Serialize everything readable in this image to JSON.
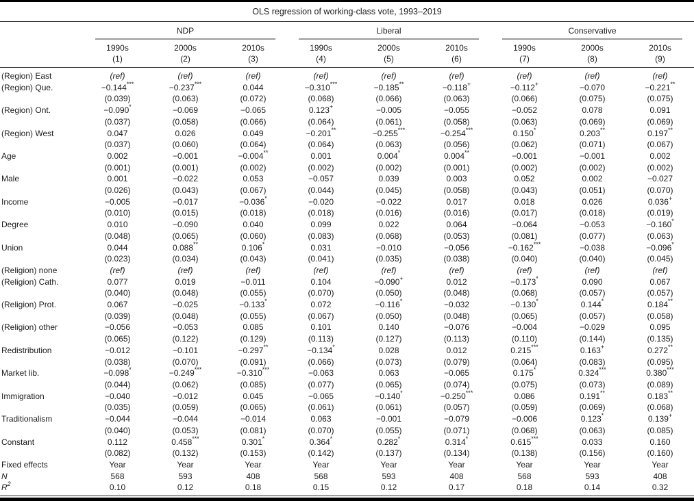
{
  "page": {
    "title": "OLS regression of working-class vote, 1993–2019"
  },
  "table": {
    "groups": [
      "NDP",
      "Liberal",
      "Conservative"
    ],
    "decades": [
      "1990s",
      "2000s",
      "2010s",
      "1990s",
      "2000s",
      "2010s",
      "1990s",
      "2000s",
      "2010s"
    ],
    "model_numbers": [
      "(1)",
      "(2)",
      "(3)",
      "(4)",
      "(5)",
      "(6)",
      "(7)",
      "(8)",
      "(9)"
    ],
    "rows": [
      {
        "label": "(Region) East",
        "values": [
          "(ref)",
          "(ref)",
          "(ref)",
          "(ref)",
          "(ref)",
          "(ref)",
          "(ref)",
          "(ref)",
          "(ref)"
        ]
      },
      {
        "label": "(Region) Que.",
        "values": [
          "−0.144***",
          "−0.237***",
          "0.044",
          "−0.310***",
          "−0.185**",
          "−0.118+",
          "−0.112+",
          "−0.070",
          "−0.221**"
        ],
        "se": [
          "(0.039)",
          "(0.063)",
          "(0.072)",
          "(0.068)",
          "(0.066)",
          "(0.063)",
          "(0.066)",
          "(0.075)",
          "(0.075)"
        ]
      },
      {
        "label": "(Region) Ont.",
        "values": [
          "−0.090*",
          "−0.069",
          "−0.065",
          "0.123+",
          "−0.005",
          "−0.055",
          "−0.052",
          "0.078",
          "0.091"
        ],
        "se": [
          "(0.037)",
          "(0.058)",
          "(0.066)",
          "(0.064)",
          "(0.061)",
          "(0.058)",
          "(0.063)",
          "(0.069)",
          "(0.069)"
        ]
      },
      {
        "label": "(Region) West",
        "values": [
          "0.047",
          "0.026",
          "0.049",
          "−0.201**",
          "−0.255***",
          "−0.254***",
          "0.150*",
          "0.203**",
          "0.197**"
        ],
        "se": [
          "(0.037)",
          "(0.060)",
          "(0.064)",
          "(0.064)",
          "(0.063)",
          "(0.056)",
          "(0.062)",
          "(0.071)",
          "(0.067)"
        ]
      },
      {
        "label": "Age",
        "values": [
          "0.002",
          "−0.001",
          "−0.004**",
          "0.001",
          "0.004*",
          "0.004**",
          "−0.001",
          "−0.001",
          "0.002"
        ],
        "se": [
          "(0.001)",
          "(0.001)",
          "(0.002)",
          "(0.002)",
          "(0.002)",
          "(0.001)",
          "(0.002)",
          "(0.002)",
          "(0.002)"
        ]
      },
      {
        "label": "Male",
        "values": [
          "0.001",
          "−0.022",
          "0.053",
          "−0.057",
          "0.039",
          "0.003",
          "0.052",
          "0.002",
          "−0.027"
        ],
        "se": [
          "(0.026)",
          "(0.043)",
          "(0.067)",
          "(0.044)",
          "(0.045)",
          "(0.058)",
          "(0.043)",
          "(0.051)",
          "(0.070)"
        ]
      },
      {
        "label": "Income",
        "values": [
          "−0.005",
          "−0.017",
          "−0.036*",
          "−0.020",
          "−0.022",
          "0.017",
          "0.018",
          "0.026",
          "0.036+"
        ],
        "se": [
          "(0.010)",
          "(0.015)",
          "(0.018)",
          "(0.018)",
          "(0.016)",
          "(0.016)",
          "(0.017)",
          "(0.018)",
          "(0.019)"
        ]
      },
      {
        "label": "Degree",
        "values": [
          "0.010",
          "−0.090",
          "0.040",
          "0.099",
          "0.022",
          "0.064",
          "−0.064",
          "−0.053",
          "−0.160*"
        ],
        "se": [
          "(0.048)",
          "(0.065)",
          "(0.060)",
          "(0.083)",
          "(0.068)",
          "(0.053)",
          "(0.081)",
          "(0.077)",
          "(0.063)"
        ]
      },
      {
        "label": "Union",
        "values": [
          "0.044",
          "0.088**",
          "0.106*",
          "0.031",
          "−0.010",
          "−0.056",
          "−0.162***",
          "−0.038",
          "−0.096*"
        ],
        "se": [
          "(0.023)",
          "(0.034)",
          "(0.043)",
          "(0.041)",
          "(0.035)",
          "(0.038)",
          "(0.040)",
          "(0.040)",
          "(0.045)"
        ]
      },
      {
        "label": "(Religion) none",
        "values": [
          "(ref)",
          "(ref)",
          "(ref)",
          "(ref)",
          "(ref)",
          "(ref)",
          "(ref)",
          "(ref)",
          "(ref)"
        ]
      },
      {
        "label": "(Religion) Cath.",
        "values": [
          "0.077",
          "0.019",
          "−0.011",
          "0.104",
          "−0.090+",
          "0.012",
          "−0.173*",
          "0.090",
          "0.067"
        ],
        "se": [
          "(0.040)",
          "(0.048)",
          "(0.055)",
          "(0.070)",
          "(0.050)",
          "(0.048)",
          "(0.068)",
          "(0.057)",
          "(0.057)"
        ]
      },
      {
        "label": "(Religion) Prot.",
        "values": [
          "0.067",
          "−0.025",
          "−0.133*",
          "0.072",
          "−0.116*",
          "−0.032",
          "−0.130*",
          "0.144*",
          "0.184**"
        ],
        "se": [
          "(0.039)",
          "(0.048)",
          "(0.055)",
          "(0.067)",
          "(0.050)",
          "(0.048)",
          "(0.065)",
          "(0.057)",
          "(0.058)"
        ]
      },
      {
        "label": "(Religion) other",
        "values": [
          "−0.056",
          "−0.053",
          "0.085",
          "0.101",
          "0.140",
          "−0.076",
          "−0.004",
          "−0.029",
          "0.095"
        ],
        "se": [
          "(0.065)",
          "(0.122)",
          "(0.129)",
          "(0.113)",
          "(0.127)",
          "(0.113)",
          "(0.110)",
          "(0.144)",
          "(0.135)"
        ]
      },
      {
        "label": "Redistribution",
        "values": [
          "−0.012",
          "−0.101",
          "−0.297**",
          "−0.134*",
          "0.028",
          "0.012",
          "0.215***",
          "0.163+",
          "0.272**"
        ],
        "se": [
          "(0.038)",
          "(0.070)",
          "(0.091)",
          "(0.066)",
          "(0.073)",
          "(0.079)",
          "(0.064)",
          "(0.083)",
          "(0.095)"
        ]
      },
      {
        "label": "Market lib.",
        "values": [
          "−0.098*",
          "−0.249***",
          "−0.310***",
          "−0.063",
          "0.063",
          "−0.065",
          "0.175*",
          "0.324***",
          "0.380***"
        ],
        "se": [
          "(0.044)",
          "(0.062)",
          "(0.085)",
          "(0.077)",
          "(0.065)",
          "(0.074)",
          "(0.075)",
          "(0.073)",
          "(0.089)"
        ]
      },
      {
        "label": "Immigration",
        "values": [
          "−0.040",
          "−0.012",
          "0.045",
          "−0.065",
          "−0.140*",
          "−0.250***",
          "0.086",
          "0.191**",
          "0.183**"
        ],
        "se": [
          "(0.035)",
          "(0.059)",
          "(0.065)",
          "(0.061)",
          "(0.061)",
          "(0.057)",
          "(0.059)",
          "(0.069)",
          "(0.068)"
        ]
      },
      {
        "label": "Traditionalism",
        "values": [
          "−0.044",
          "−0.044",
          "−0.014",
          "0.063",
          "−0.001",
          "−0.079",
          "−0.006",
          "0.123*",
          "0.139+"
        ],
        "se": [
          "(0.040)",
          "(0.053)",
          "(0.081)",
          "(0.070)",
          "(0.055)",
          "(0.071)",
          "(0.068)",
          "(0.063)",
          "(0.085)"
        ]
      },
      {
        "label": "Constant",
        "values": [
          "0.112",
          "0.458***",
          "0.301*",
          "0.364*",
          "0.282*",
          "0.314*",
          "0.615***",
          "0.033",
          "0.160"
        ],
        "se": [
          "(0.082)",
          "(0.132)",
          "(0.153)",
          "(0.142)",
          "(0.137)",
          "(0.134)",
          "(0.138)",
          "(0.156)",
          "(0.160)"
        ]
      },
      {
        "label": "Fixed effects",
        "values": [
          "Year",
          "Year",
          "Year",
          "Year",
          "Year",
          "Year",
          "Year",
          "Year",
          "Year"
        ]
      },
      {
        "label": "N",
        "italic": true,
        "values": [
          "568",
          "593",
          "408",
          "568",
          "593",
          "408",
          "568",
          "593",
          "408"
        ]
      },
      {
        "label": "R",
        "label_sup": "2",
        "italic": true,
        "values": [
          "0.10",
          "0.12",
          "0.18",
          "0.15",
          "0.12",
          "0.17",
          "0.18",
          "0.14",
          "0.32"
        ]
      }
    ]
  }
}
